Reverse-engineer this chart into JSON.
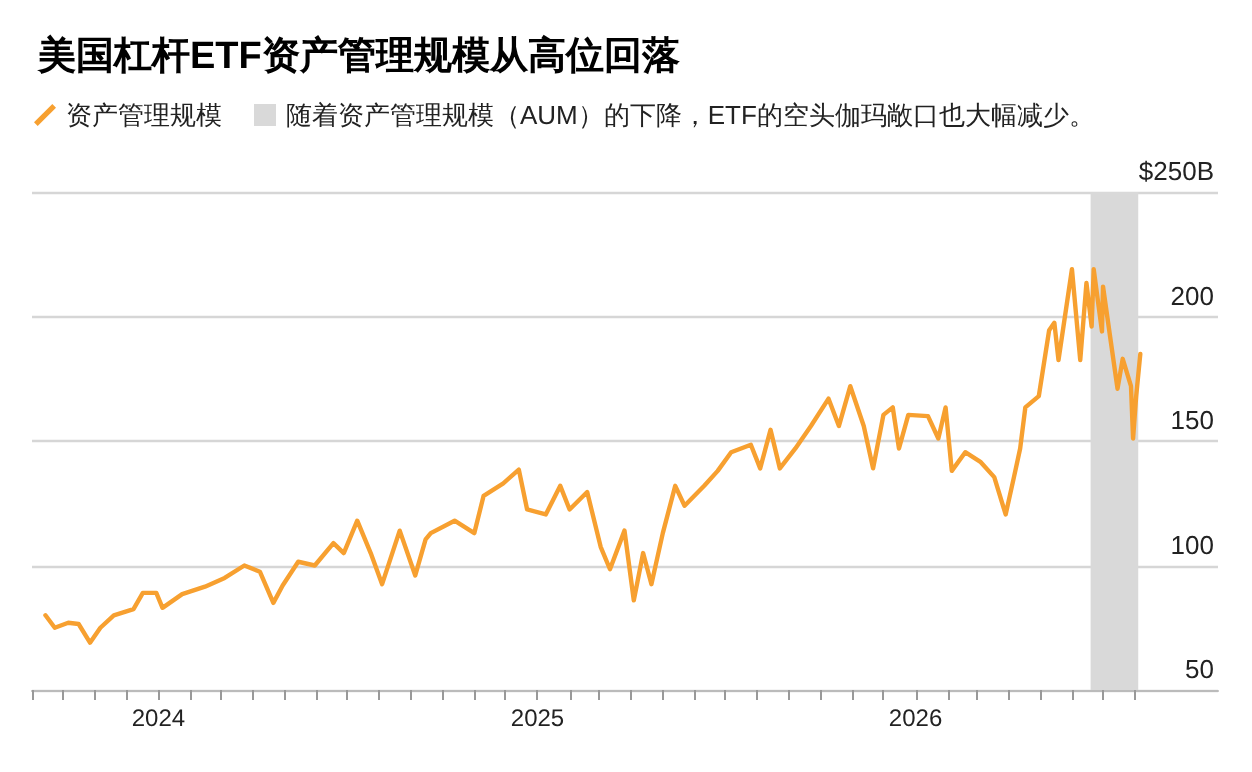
{
  "chart_data": {
    "type": "line",
    "title": "美国杠杆ETF资产管理规模从高位回落",
    "x": [
      "2023-09-14",
      "2023-09-23",
      "2023-10-06",
      "2023-10-16",
      "2023-10-27",
      "2023-11-06",
      "2023-11-19",
      "2023-12-08",
      "2023-12-17",
      "2023-12-30",
      "2024-01-05",
      "2024-01-24",
      "2024-02-15",
      "2024-03-05",
      "2024-03-24",
      "2024-04-08",
      "2024-04-21",
      "2024-04-30",
      "2024-05-15",
      "2024-05-31",
      "2024-06-18",
      "2024-06-28",
      "2024-07-11",
      "2024-07-24",
      "2024-08-04",
      "2024-08-21",
      "2024-09-05",
      "2024-09-15",
      "2024-09-20",
      "2024-10-13",
      "2024-11-01",
      "2024-11-10",
      "2024-11-29",
      "2024-12-14",
      "2024-12-22",
      "2025-01-09",
      "2025-01-23",
      "2025-02-01",
      "2025-02-18",
      "2025-03-03",
      "2025-03-12",
      "2025-03-26",
      "2025-04-04",
      "2025-04-13",
      "2025-04-21",
      "2025-05-02",
      "2025-05-14",
      "2025-05-23",
      "2025-06-11",
      "2025-06-24",
      "2025-07-07",
      "2025-07-26",
      "2025-08-04",
      "2025-08-14",
      "2025-08-23",
      "2025-09-07",
      "2025-09-22",
      "2025-10-09",
      "2025-10-19",
      "2025-10-30",
      "2025-11-12",
      "2025-11-21",
      "2025-12-01",
      "2025-12-10",
      "2025-12-16",
      "2025-12-25",
      "2026-01-13",
      "2026-01-23",
      "2026-01-30",
      "2026-02-05",
      "2026-02-18",
      "2026-03-05",
      "2026-03-18",
      "2026-03-29",
      "2026-04-06",
      "2026-04-12",
      "2026-04-17",
      "2026-04-30",
      "2026-05-10",
      "2026-05-15",
      "2026-05-19",
      "2026-06-01",
      "2026-06-09",
      "2026-06-15",
      "2026-06-20",
      "2026-06-22",
      "2026-06-30",
      "2026-07-01",
      "2026-07-09",
      "2026-07-15",
      "2026-07-20",
      "2026-07-28",
      "2026-07-30",
      "2026-08-02",
      "2026-08-06"
    ],
    "series": [
      {
        "name": "资产管理规模",
        "color": "#f7a030",
        "values": [
          80,
          75,
          77,
          76.5,
          69,
          75,
          80,
          82.5,
          89,
          89,
          83,
          88.5,
          91.5,
          95,
          100,
          97.5,
          85,
          92,
          101.5,
          100,
          109,
          105,
          118,
          105,
          92.5,
          114,
          96,
          110.5,
          113,
          118,
          113,
          128,
          133,
          138.5,
          122.5,
          120.5,
          132,
          122.5,
          129.5,
          107.5,
          98.5,
          114,
          86,
          105,
          92.5,
          113,
          132,
          124,
          132,
          138,
          145.5,
          148.5,
          139,
          154.5,
          139,
          147,
          156,
          167,
          156,
          172,
          156,
          139,
          160.5,
          163.5,
          147,
          160.5,
          160,
          151,
          163.5,
          138,
          145.5,
          141.5,
          135.5,
          120.5,
          135.5,
          147,
          163.5,
          168,
          194.5,
          197.5,
          182.5,
          219,
          182.5,
          213.5,
          196,
          219,
          194,
          212,
          188.5,
          171,
          183,
          172,
          151,
          168,
          185
        ]
      }
    ],
    "xlim": [
      "2023-09-01",
      "2026-10-20"
    ],
    "xticks": [
      {
        "value": "2023-09-01",
        "label": null
      },
      {
        "value": "2023-10-01",
        "label": null
      },
      {
        "value": "2023-11-01",
        "label": null
      },
      {
        "value": "2023-12-01",
        "label": null
      },
      {
        "value": "2024-01-01",
        "label": "2024"
      },
      {
        "value": "2024-02-01",
        "label": null
      },
      {
        "value": "2024-03-01",
        "label": null
      },
      {
        "value": "2024-04-01",
        "label": null
      },
      {
        "value": "2024-05-01",
        "label": null
      },
      {
        "value": "2024-06-01",
        "label": null
      },
      {
        "value": "2024-07-01",
        "label": null
      },
      {
        "value": "2024-08-01",
        "label": null
      },
      {
        "value": "2024-09-01",
        "label": null
      },
      {
        "value": "2024-10-01",
        "label": null
      },
      {
        "value": "2024-11-01",
        "label": null
      },
      {
        "value": "2024-12-01",
        "label": null
      },
      {
        "value": "2025-01-01",
        "label": "2025"
      },
      {
        "value": "2025-02-01",
        "label": null
      },
      {
        "value": "2025-03-01",
        "label": null
      },
      {
        "value": "2025-04-01",
        "label": null
      },
      {
        "value": "2025-05-01",
        "label": null
      },
      {
        "value": "2025-06-01",
        "label": null
      },
      {
        "value": "2025-07-01",
        "label": null
      },
      {
        "value": "2025-08-01",
        "label": null
      },
      {
        "value": "2025-09-01",
        "label": null
      },
      {
        "value": "2025-10-01",
        "label": null
      },
      {
        "value": "2025-11-01",
        "label": null
      },
      {
        "value": "2025-12-01",
        "label": null
      },
      {
        "value": "2026-01-01",
        "label": "2026"
      },
      {
        "value": "2026-02-01",
        "label": null
      },
      {
        "value": "2026-03-01",
        "label": null
      },
      {
        "value": "2026-04-01",
        "label": null
      },
      {
        "value": "2026-05-01",
        "label": null
      },
      {
        "value": "2026-06-01",
        "label": null
      },
      {
        "value": "2026-07-01",
        "label": null
      },
      {
        "value": "2026-08-01",
        "label": null
      }
    ],
    "ylim": [
      50,
      250
    ],
    "yticks": [
      50,
      100,
      150,
      200,
      {
        "value": 250,
        "label": "$250B"
      }
    ],
    "grid": "y",
    "legend": "top left",
    "marker": "none",
    "line_style": "solid",
    "bands": [
      {
        "axis": "x",
        "from": "2026-06-19",
        "to": "2026-08-04",
        "label": "随着资产管理规模（AUM）的下降，ETF的空头伽玛敞口也大幅减少。",
        "color": "#d9d9d9"
      }
    ]
  }
}
